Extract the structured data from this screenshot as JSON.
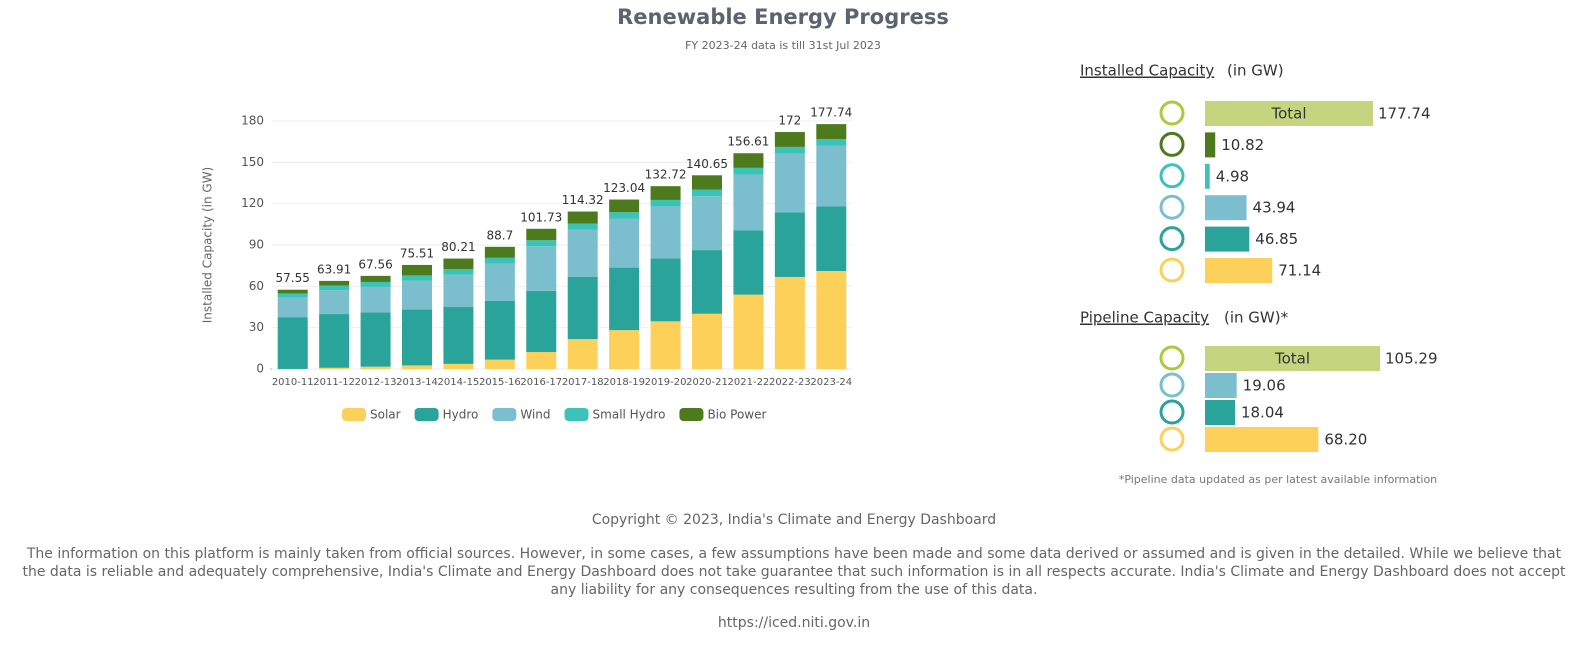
{
  "chart_data": {
    "type": "stacked_bar",
    "title": "Renewable Energy Progress",
    "subtitle": "FY 2023-24 data is till 31st Jul 2023",
    "y_label": "Installed Capacity (in GW)",
    "categories": [
      "2010-11",
      "2011-12",
      "2012-13",
      "2013-14",
      "2014-15",
      "2015-16",
      "2016-17",
      "2017-18",
      "2018-19",
      "2019-20",
      "2020-21",
      "2021-22",
      "2022-23",
      "2023-24"
    ],
    "series": [
      {
        "name": "Solar",
        "color": "#fdd05a",
        "values": [
          0.04,
          0.9,
          1.7,
          2.6,
          3.7,
          6.8,
          12.3,
          21.7,
          28.2,
          34.6,
          40.1,
          54.0,
          66.8,
          71.14
        ]
      },
      {
        "name": "Hydro",
        "color": "#2aa39b",
        "values": [
          37.6,
          38.99,
          39.49,
          40.53,
          41.27,
          42.78,
          44.48,
          45.29,
          45.4,
          45.7,
          46.2,
          46.7,
          46.85,
          46.85
        ]
      },
      {
        "name": "Wind",
        "color": "#7bbfcf",
        "values": [
          14.2,
          17.35,
          18.4,
          21.0,
          23.4,
          26.8,
          32.3,
          34.0,
          35.6,
          37.7,
          39.2,
          40.4,
          42.6,
          43.94
        ]
      },
      {
        "name": "Small Hydro",
        "color": "#3cc3b8",
        "values": [
          3.0,
          3.4,
          3.6,
          3.8,
          4.1,
          4.3,
          4.4,
          4.5,
          4.6,
          4.7,
          4.8,
          4.9,
          4.94,
          4.98
        ]
      },
      {
        "name": "Bio Power",
        "color": "#4d7a1c",
        "values": [
          2.7,
          3.3,
          4.4,
          7.6,
          7.7,
          8.0,
          8.3,
          8.8,
          9.2,
          10.0,
          10.3,
          10.6,
          10.8,
          10.82
        ]
      }
    ],
    "totals": [
      57.55,
      63.91,
      67.56,
      75.51,
      80.21,
      88.7,
      101.73,
      114.32,
      123.04,
      132.72,
      140.65,
      156.61,
      172,
      177.74
    ],
    "ylim": [
      0,
      180
    ],
    "yticks": [
      0,
      30,
      60,
      90,
      120,
      150,
      180
    ],
    "grid": true
  },
  "installed": {
    "title": "Installed Capacity",
    "unit": "(in GW)",
    "total_label": "Total",
    "total": 177.74,
    "total_color": "#c5d57f",
    "items": [
      {
        "value": 10.82,
        "color": "#4d7a1c"
      },
      {
        "value": 4.98,
        "color": "#3cc3b8"
      },
      {
        "value": 43.94,
        "color": "#7bbfcf"
      },
      {
        "value": 46.85,
        "color": "#2aa39b"
      },
      {
        "value": 71.14,
        "color": "#fdd05a"
      }
    ]
  },
  "pipeline": {
    "title": "Pipeline Capacity",
    "unit": "(in GW)*",
    "total_label": "Total",
    "total": 105.29,
    "total_color": "#c5d57f",
    "items": [
      {
        "value": 19.06,
        "color": "#7bbfcf"
      },
      {
        "value": 18.04,
        "color": "#2aa39b"
      },
      {
        "value": 68.2,
        "value_label": "68.20",
        "color": "#fdd05a"
      }
    ],
    "note": "*Pipeline data updated as per latest available information"
  },
  "footer": {
    "copyright": "Copyright © 2023, India's Climate and Energy Dashboard",
    "disclaimer": "The information on this platform is mainly taken from official sources. However, in some cases, a few assumptions have been made and some data derived or assumed and is given in the detailed. While we believe that the data is reliable and adequately comprehensive, India's Climate and Energy Dashboard does not take guarantee that such information is in all respects accurate. India's Climate and Energy Dashboard does not accept any liability for any consequences resulting from the use of this data.",
    "url": "https://iced.niti.gov.in"
  }
}
